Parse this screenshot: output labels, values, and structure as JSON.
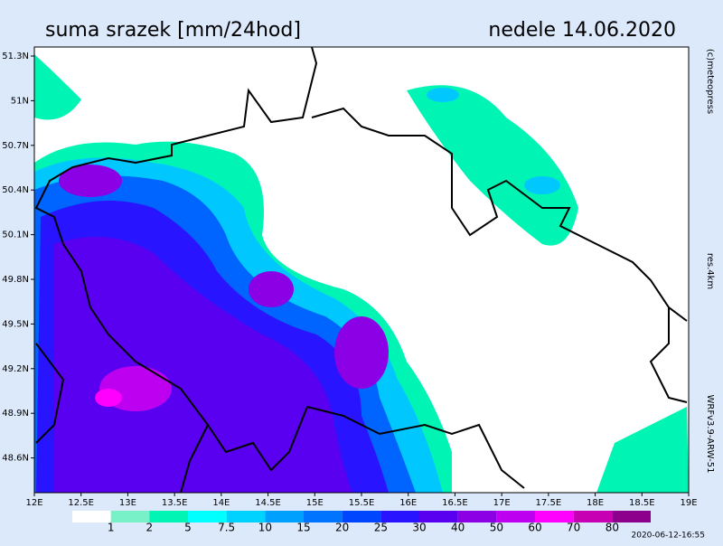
{
  "header": {
    "title": "suma srazek [mm/24hod]",
    "date": "nedele 14.06.2020"
  },
  "map": {
    "lat_labels": [
      "51.3N",
      "51N",
      "50.7N",
      "50.4N",
      "50.1N",
      "49.8N",
      "49.5N",
      "49.2N",
      "48.9N",
      "48.6N"
    ],
    "lon_labels": [
      "12E",
      "12.5E",
      "13E",
      "13.5E",
      "14E",
      "14.5E",
      "15E",
      "15.5E",
      "16E",
      "16.5E",
      "17E",
      "17.5E",
      "18E",
      "18.5E",
      "19E"
    ]
  },
  "legend": {
    "labels": [
      "1",
      "2",
      "5",
      "7.5",
      "10",
      "15",
      "20",
      "25",
      "30",
      "40",
      "50",
      "60",
      "70",
      "80"
    ],
    "colors": [
      "#ffffff",
      "#78f0c8",
      "#00f5b4",
      "#00ffff",
      "#00d2ff",
      "#00a0ff",
      "#0073ff",
      "#0046ff",
      "#2814ff",
      "#5a00f0",
      "#8c00e6",
      "#be00f0",
      "#ff00ff",
      "#c800b4",
      "#8c008c"
    ]
  },
  "side": {
    "credit": "(c)meteopress",
    "resolution": "res.4km",
    "model": "WRFv3.9-ARW-51"
  },
  "footer": {
    "timestamp": "2020-06-12-16:55"
  }
}
